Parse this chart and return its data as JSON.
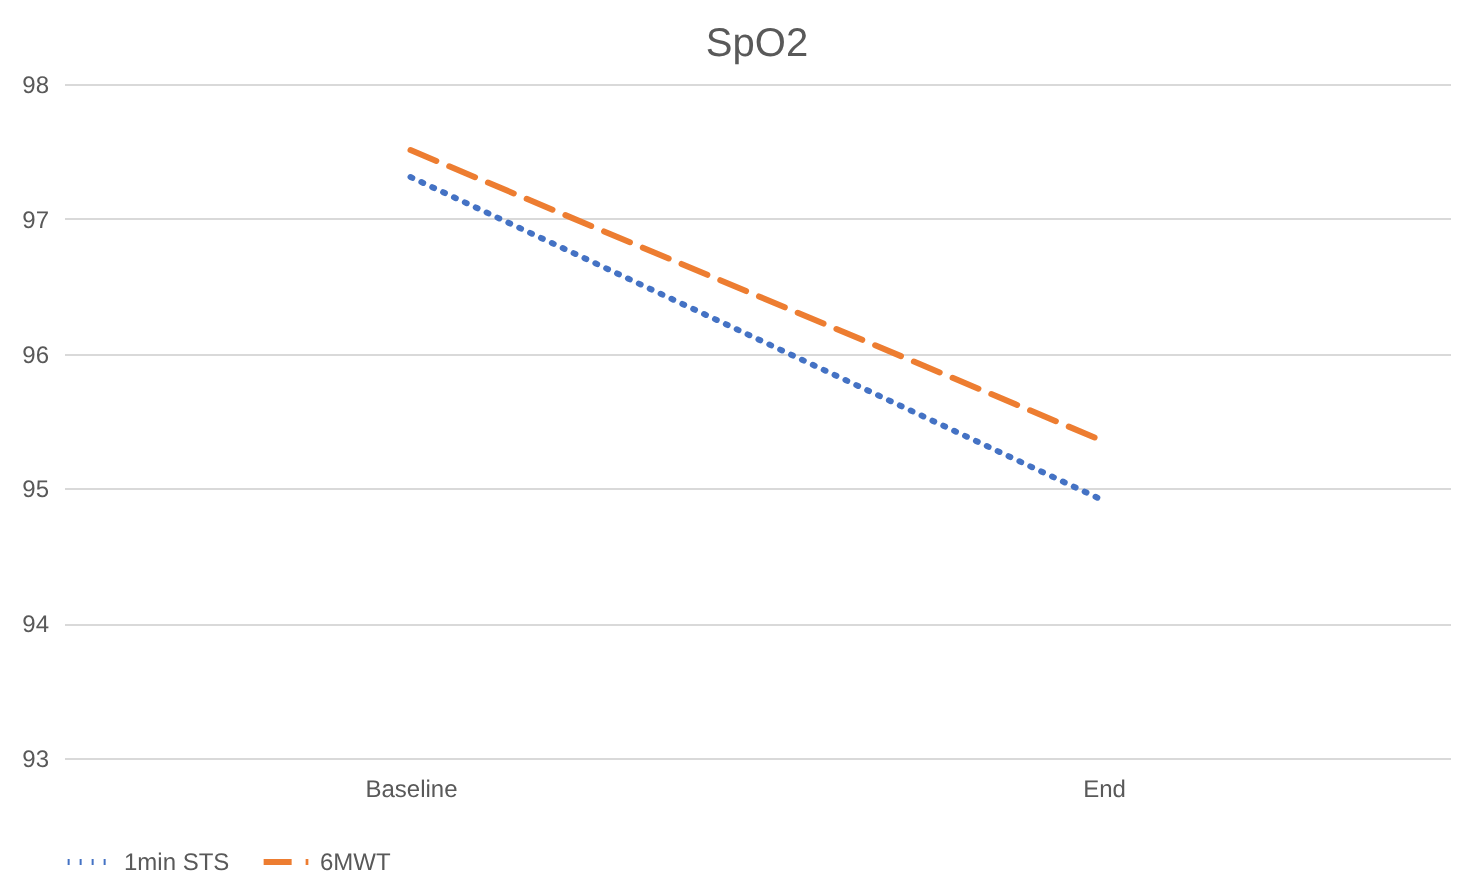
{
  "chart_data": {
    "type": "line",
    "title": "SpO2",
    "categories": [
      "Baseline",
      "End"
    ],
    "series": [
      {
        "name": "1min STS",
        "color": "#4472c4",
        "line_style": "dotted",
        "values": [
          97.31,
          94.91
        ]
      },
      {
        "name": "6MWT",
        "color": "#ed7d31",
        "line_style": "dashed",
        "values": [
          97.51,
          95.35
        ]
      }
    ],
    "ylim": [
      93,
      98
    ],
    "yticks": [
      93,
      94,
      95,
      96,
      97,
      98
    ],
    "grid": "y",
    "legend": "bottom",
    "marker": "none"
  }
}
